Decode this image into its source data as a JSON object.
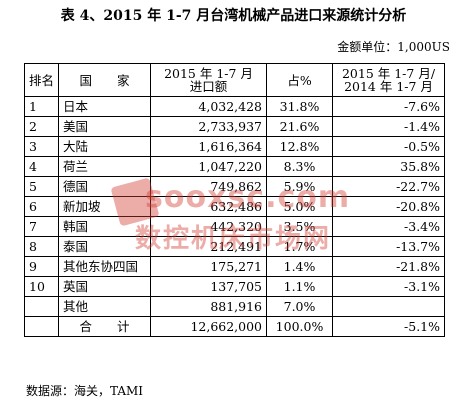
{
  "title": "表 4、2015 年 1-7 月台湾机械产品进口来源统计分析",
  "unit": "金额单位：1,000US",
  "headers": {
    "rank": "排名",
    "country": "国　　家",
    "amount": "2015 年 1-7 月进口额",
    "share": "占%",
    "yoy": "2015 年 1-7 月/2014 年 1-7 月"
  },
  "rows": [
    {
      "rank": "1",
      "country": "日本",
      "amount": "4,032,428",
      "share": "31.8%",
      "yoy": "-7.6%"
    },
    {
      "rank": "2",
      "country": "美国",
      "amount": "2,733,937",
      "share": "21.6%",
      "yoy": "-1.4%"
    },
    {
      "rank": "3",
      "country": "大陆",
      "amount": "1,616,364",
      "share": "12.8%",
      "yoy": "-0.5%"
    },
    {
      "rank": "4",
      "country": "荷兰",
      "amount": "1,047,220",
      "share": "8.3%",
      "yoy": "35.8%"
    },
    {
      "rank": "5",
      "country": "德国",
      "amount": "749,862",
      "share": "5.9%",
      "yoy": "-22.7%"
    },
    {
      "rank": "6",
      "country": "新加坡",
      "amount": "632,486",
      "share": "5.0%",
      "yoy": "-20.8%"
    },
    {
      "rank": "7",
      "country": "韩国",
      "amount": "442,320",
      "share": "3.5%",
      "yoy": "-3.4%"
    },
    {
      "rank": "8",
      "country": "泰国",
      "amount": "212,491",
      "share": "1.7%",
      "yoy": "-13.7%"
    },
    {
      "rank": "9",
      "country": "其他东协四国",
      "amount": "175,271",
      "share": "1.4%",
      "yoy": "-21.8%"
    },
    {
      "rank": "10",
      "country": "英国",
      "amount": "137,705",
      "share": "1.1%",
      "yoy": "-3.1%"
    },
    {
      "rank": "",
      "country": "其他",
      "amount": "881,916",
      "share": "7.0%",
      "yoy": ""
    }
  ],
  "total": {
    "label": "合　　计",
    "amount": "12,662,000",
    "share": "100.0%",
    "yoy": "-5.1%"
  },
  "source": "数据源：海关，TAMI",
  "watermark": {
    "line1": "sooxsc.com",
    "line2": "数控机床市场网",
    "color": "#d23c32"
  }
}
